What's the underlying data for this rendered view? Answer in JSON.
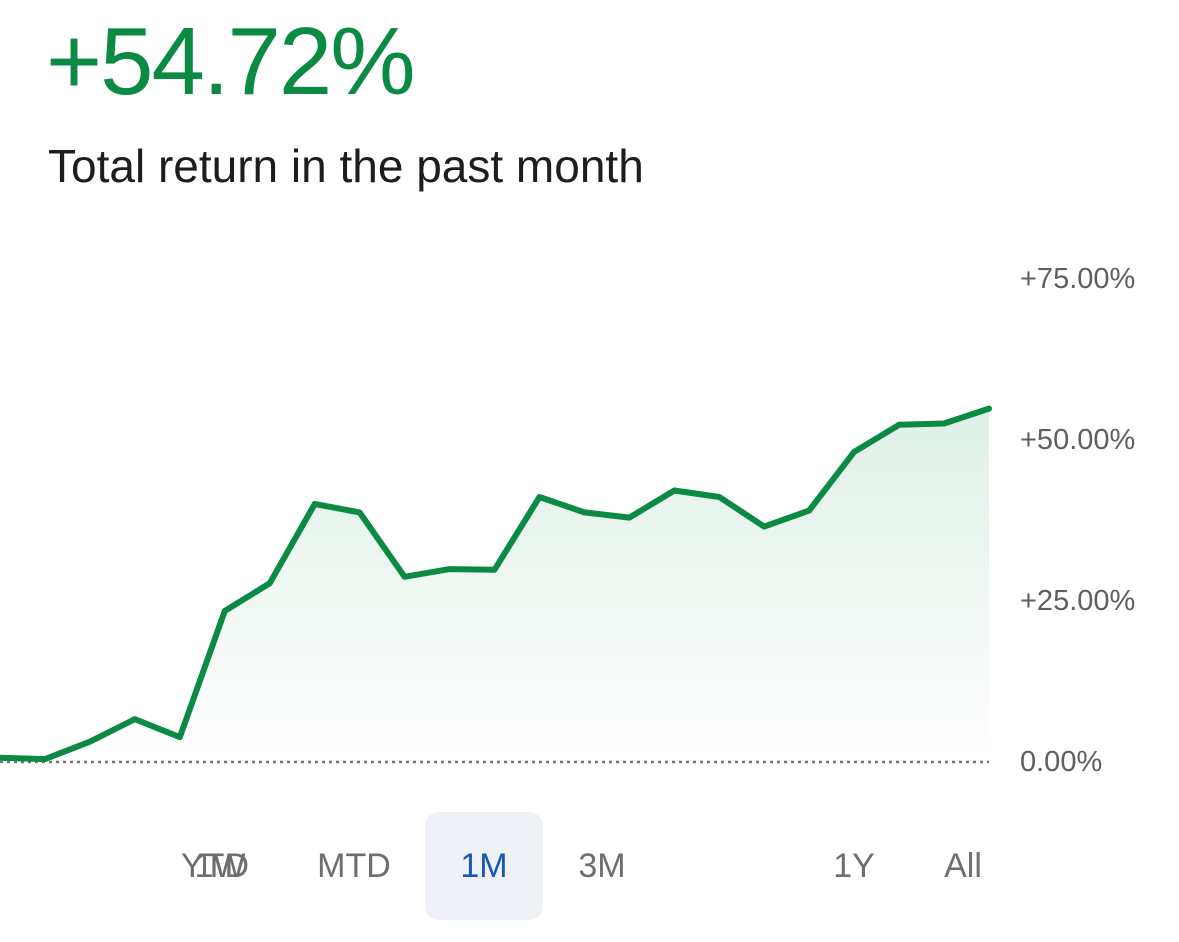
{
  "header": {
    "value": "+54.72%",
    "caption": "Total return in the past month"
  },
  "colors": {
    "accent_green": "#0b8a43",
    "selected_blue": "#1b56b4",
    "selected_bg": "#eef1f6",
    "tick_gray": "#5f5f5f"
  },
  "chart_data": {
    "type": "area",
    "title": "",
    "xlabel": "",
    "ylabel": "",
    "ylim": [
      0,
      75
    ],
    "grid": false,
    "baseline": 0,
    "y_ticks": [
      {
        "value": 75,
        "label": "+75.00%"
      },
      {
        "value": 50,
        "label": "+50.00%"
      },
      {
        "value": 25,
        "label": "+25.00%"
      },
      {
        "value": 0,
        "label": "0.00%"
      }
    ],
    "series": [
      {
        "values": [
          0.5,
          0.3,
          3.0,
          6.5,
          3.7,
          23.3,
          27.6,
          39.9,
          38.6,
          28.6,
          29.8,
          29.7,
          41.0,
          38.6,
          37.8,
          42.0,
          41.0,
          36.4,
          38.9,
          48.0,
          52.2,
          52.4,
          54.72
        ]
      }
    ]
  },
  "ranges": {
    "selected": "1M",
    "items": [
      {
        "id": "1w",
        "label": "1W"
      },
      {
        "id": "mtd",
        "label": "MTD"
      },
      {
        "id": "1m",
        "label": "1M"
      },
      {
        "id": "3m",
        "label": "3M"
      },
      {
        "id": "ytd",
        "label": "YTD"
      },
      {
        "id": "1y",
        "label": "1Y"
      },
      {
        "id": "all",
        "label": "All"
      }
    ]
  }
}
